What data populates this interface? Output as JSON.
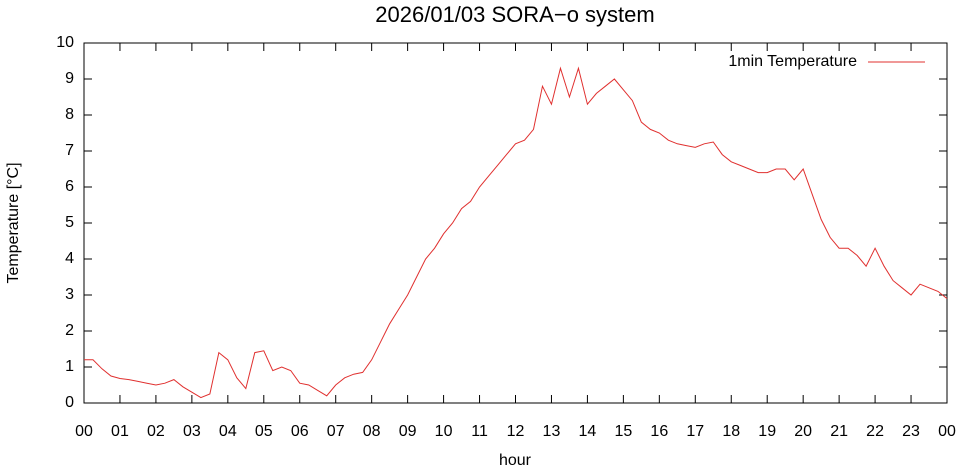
{
  "chart_data": {
    "type": "line",
    "title": "2026/01/03 SORA−o system",
    "xlabel": "hour",
    "ylabel": "Temperature [°C]",
    "x": [
      0,
      0.25,
      0.5,
      0.75,
      1,
      1.25,
      1.5,
      1.75,
      2,
      2.25,
      2.5,
      2.75,
      3,
      3.25,
      3.5,
      3.75,
      4,
      4.25,
      4.5,
      4.75,
      5,
      5.25,
      5.5,
      5.75,
      6,
      6.25,
      6.5,
      6.75,
      7,
      7.25,
      7.5,
      7.75,
      8,
      8.25,
      8.5,
      8.75,
      9,
      9.25,
      9.5,
      9.75,
      10,
      10.25,
      10.5,
      10.75,
      11,
      11.25,
      11.5,
      11.75,
      12,
      12.25,
      12.5,
      12.75,
      13,
      13.25,
      13.5,
      13.75,
      14,
      14.25,
      14.5,
      14.75,
      15,
      15.25,
      15.5,
      15.75,
      16,
      16.25,
      16.5,
      16.75,
      17,
      17.25,
      17.5,
      17.75,
      18,
      18.25,
      18.5,
      18.75,
      19,
      19.25,
      19.5,
      19.75,
      20,
      20.25,
      20.5,
      20.75,
      21,
      21.25,
      21.5,
      21.75,
      22,
      22.25,
      22.5,
      22.75,
      23,
      23.25,
      23.5,
      23.75,
      24
    ],
    "series": [
      {
        "name": "1min Temperature",
        "color": "#e0302f",
        "values": [
          1.2,
          1.2,
          0.95,
          0.75,
          0.68,
          0.65,
          0.6,
          0.55,
          0.5,
          0.55,
          0.65,
          0.45,
          0.3,
          0.15,
          0.25,
          1.4,
          1.2,
          0.7,
          0.4,
          1.4,
          1.45,
          0.9,
          1.0,
          0.9,
          0.55,
          0.5,
          0.35,
          0.2,
          0.5,
          0.7,
          0.8,
          0.85,
          1.2,
          1.7,
          2.2,
          2.6,
          3.0,
          3.5,
          4.0,
          4.3,
          4.7,
          5.0,
          5.4,
          5.6,
          6.0,
          6.3,
          6.6,
          6.9,
          7.2,
          7.3,
          7.6,
          8.8,
          8.3,
          9.3,
          8.5,
          9.3,
          8.3,
          8.6,
          8.8,
          9.0,
          8.7,
          8.4,
          7.8,
          7.6,
          7.5,
          7.3,
          7.2,
          7.15,
          7.1,
          7.2,
          7.25,
          6.9,
          6.7,
          6.6,
          6.5,
          6.4,
          6.4,
          6.5,
          6.5,
          6.2,
          6.5,
          5.8,
          5.1,
          4.6,
          4.3,
          4.3,
          4.1,
          3.8,
          4.3,
          3.8,
          3.4,
          3.2,
          3.0,
          3.3,
          3.2,
          3.1,
          2.9
        ]
      }
    ],
    "xlim": [
      0,
      24
    ],
    "xticks": [
      {
        "value": 0,
        "label": "00"
      },
      {
        "value": 1,
        "label": "01"
      },
      {
        "value": 2,
        "label": "02"
      },
      {
        "value": 3,
        "label": "03"
      },
      {
        "value": 4,
        "label": "04"
      },
      {
        "value": 5,
        "label": "05"
      },
      {
        "value": 6,
        "label": "06"
      },
      {
        "value": 7,
        "label": "07"
      },
      {
        "value": 8,
        "label": "08"
      },
      {
        "value": 9,
        "label": "09"
      },
      10,
      11,
      12,
      13,
      14,
      15,
      16,
      17,
      18,
      19,
      20,
      21,
      22,
      23,
      {
        "value": 24,
        "label": "00"
      }
    ],
    "ylim": [
      0,
      10
    ],
    "yticks": [
      0,
      1,
      2,
      3,
      4,
      5,
      6,
      7,
      8,
      9,
      10
    ],
    "legend": "top-right",
    "grid": false
  }
}
